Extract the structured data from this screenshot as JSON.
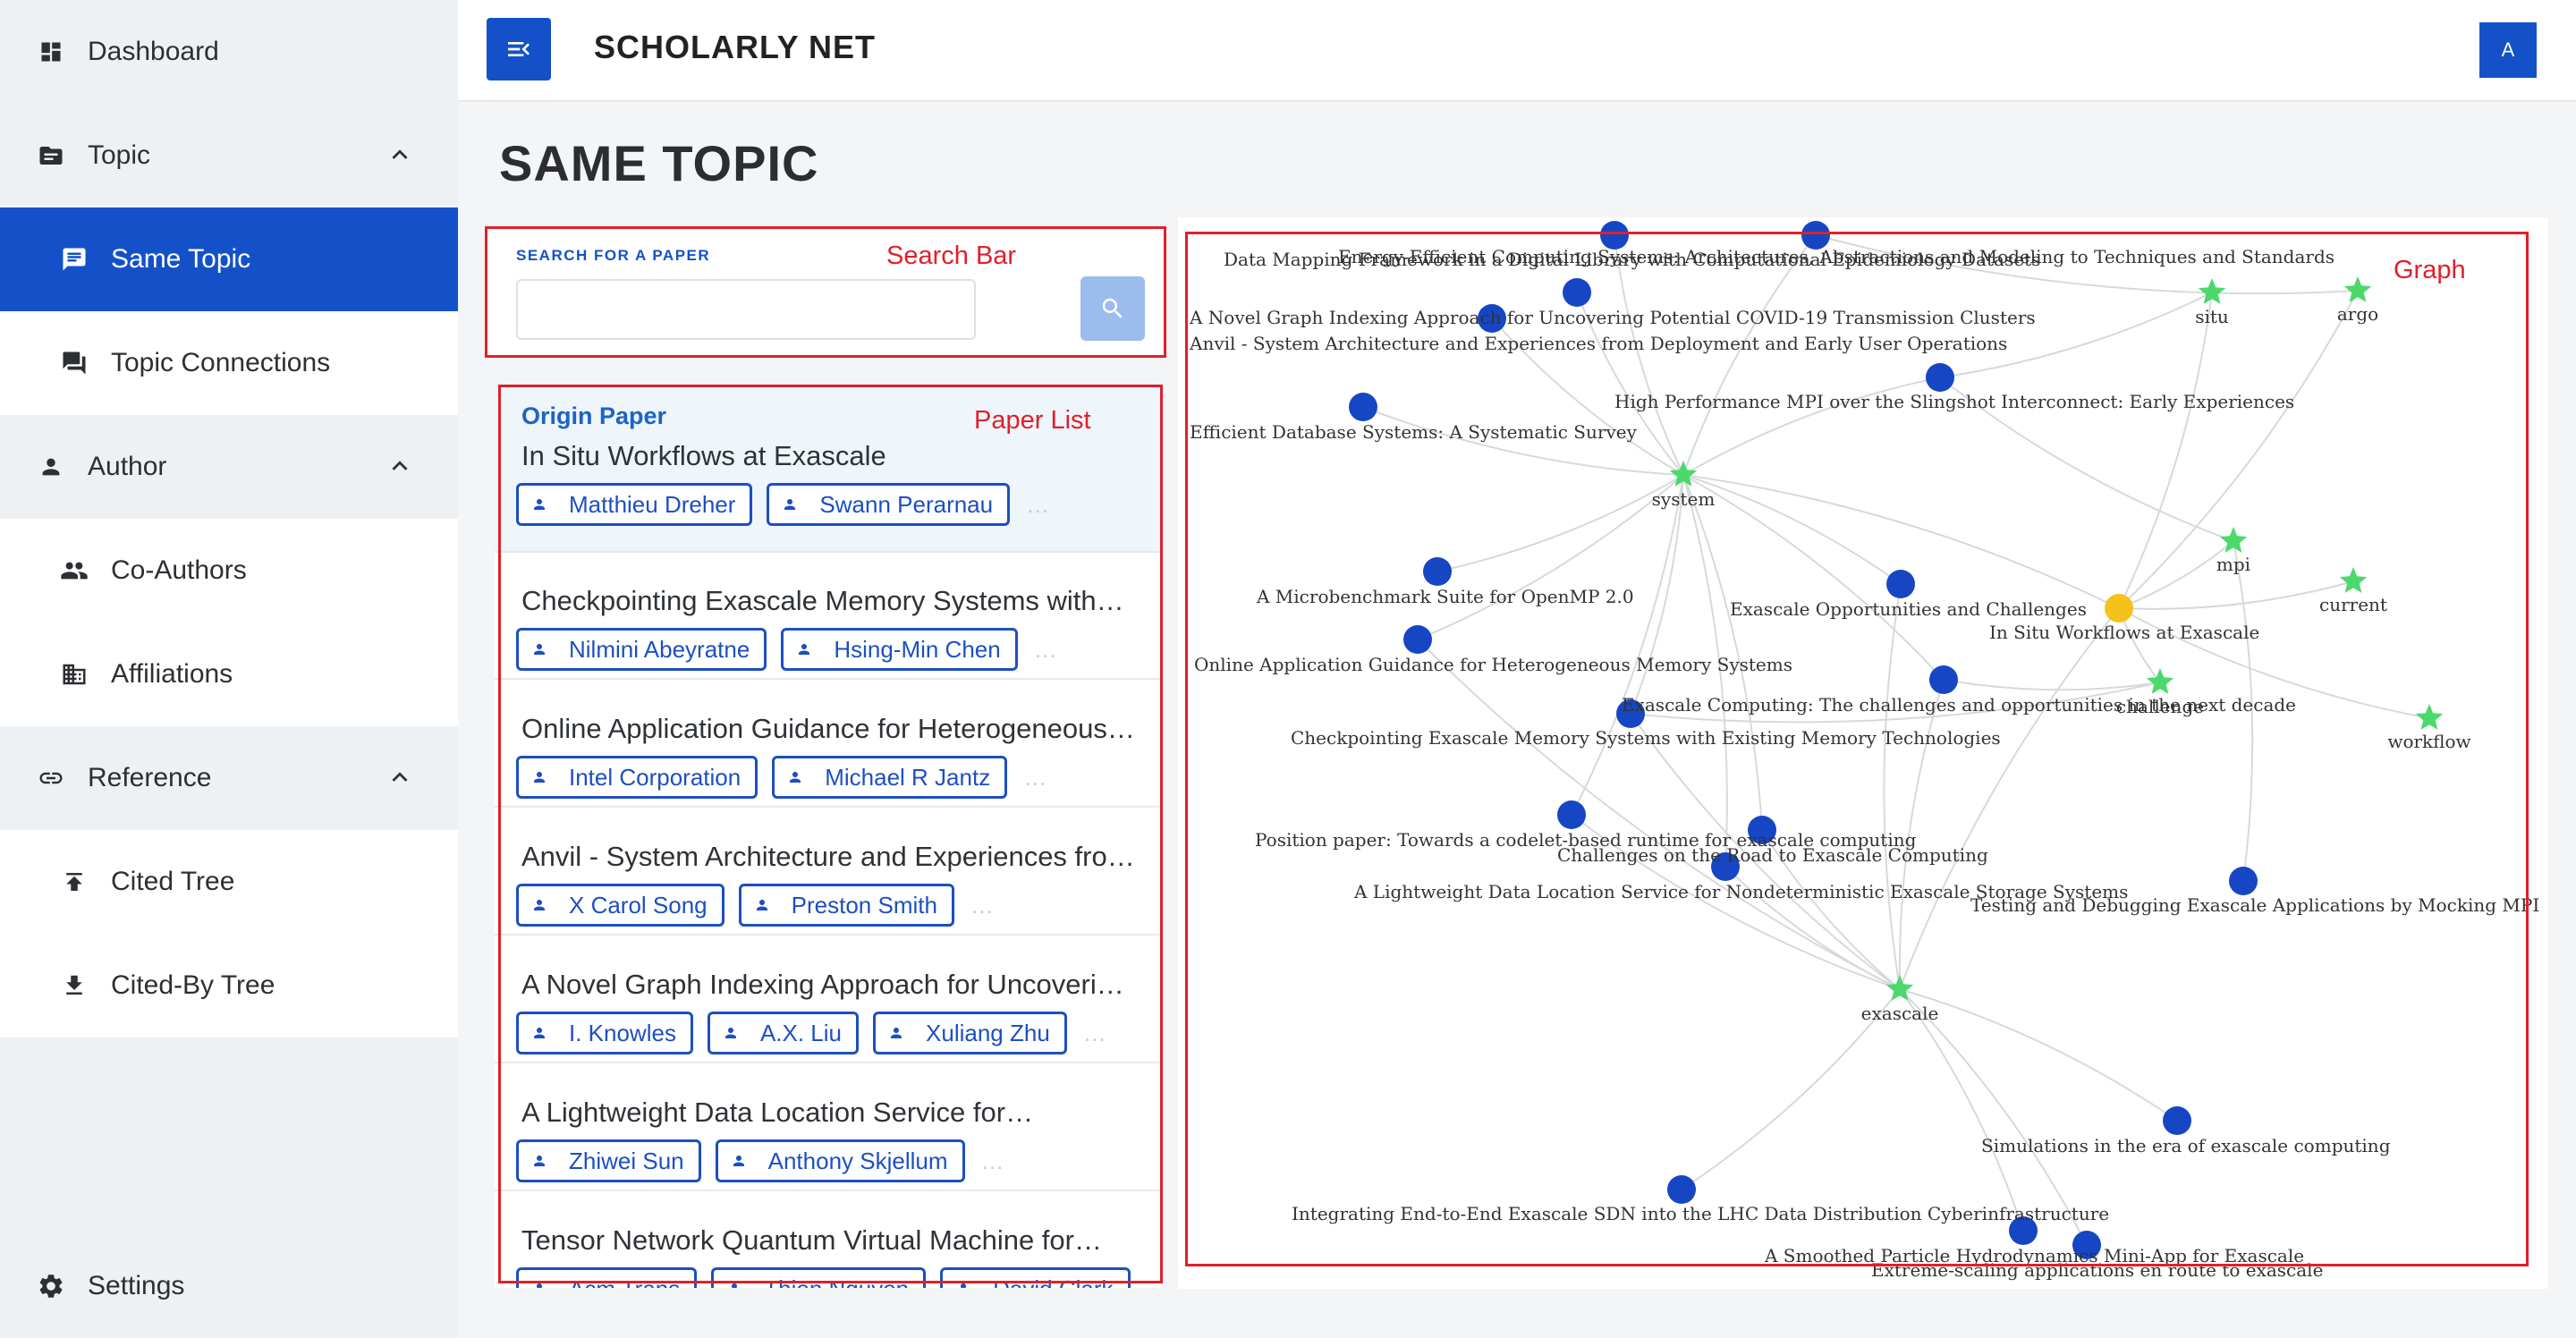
{
  "header": {
    "app_title": "SCHOLARLY NET",
    "avatar_initial": "A",
    "menu_icon": "menu-collapse-icon"
  },
  "page_title": "SAME TOPIC",
  "sidebar": {
    "items": [
      {
        "label": "Dashboard",
        "icon": "dashboard-icon",
        "level": "top"
      },
      {
        "label": "Topic",
        "icon": "topic-icon",
        "level": "top",
        "expanded": true
      },
      {
        "label": "Same Topic",
        "icon": "comment-icon",
        "level": "sub",
        "active": true
      },
      {
        "label": "Topic Connections",
        "icon": "forum-icon",
        "level": "sub"
      },
      {
        "label": "Author",
        "icon": "person-icon",
        "level": "top",
        "expanded": true
      },
      {
        "label": "Co-Authors",
        "icon": "people-icon",
        "level": "sub"
      },
      {
        "label": "Affiliations",
        "icon": "building-icon",
        "level": "sub"
      },
      {
        "label": "Reference",
        "icon": "link-icon",
        "level": "top",
        "expanded": true
      },
      {
        "label": "Cited Tree",
        "icon": "upload-arrow-icon",
        "level": "sub"
      },
      {
        "label": "Cited-By Tree",
        "icon": "download-arrow-icon",
        "level": "sub"
      }
    ],
    "settings_label": "Settings"
  },
  "search": {
    "label": "SEARCH FOR A PAPER",
    "value": "",
    "placeholder": ""
  },
  "paper_list": {
    "origin_label": "Origin Paper",
    "papers": [
      {
        "title": "In Situ Workflows at Exascale",
        "authors": [
          "Matthieu Dreher",
          "Swann Perarnau"
        ],
        "origin": true
      },
      {
        "title": "Checkpointing Exascale Memory Systems with…",
        "authors": [
          "Nilmini Abeyratne",
          "Hsing-Min Chen"
        ]
      },
      {
        "title": "Online Application Guidance for Heterogeneous…",
        "authors": [
          "Intel Corporation",
          "Michael R Jantz"
        ]
      },
      {
        "title": "Anvil - System Architecture and Experiences from…",
        "authors": [
          "X Carol Song",
          "Preston Smith"
        ]
      },
      {
        "title": "A Novel Graph Indexing Approach for Uncovering…",
        "authors": [
          "I. Knowles",
          "A.X. Liu",
          "Xuliang Zhu"
        ]
      },
      {
        "title": "A Lightweight Data Location Service for…",
        "authors": [
          "Zhiwei Sun",
          "Anthony Skjellum"
        ]
      },
      {
        "title": "Tensor Network Quantum Virtual Machine for…",
        "authors": [
          "Acm Trans",
          "Thien Nguyen",
          "David Clark"
        ]
      }
    ],
    "ellipsis": "…"
  },
  "annotations": {
    "search_bar": "Search Bar",
    "paper_list": "Paper List",
    "graph": "Graph"
  },
  "graph": {
    "colors": {
      "paper": "#1746c4",
      "origin": "#f5c21b",
      "keyword": "#4cd96b",
      "edge": "#d6d9dc"
    },
    "keywords": [
      "system",
      "situ",
      "argo",
      "mpi",
      "current",
      "challenge",
      "workflow",
      "exascale"
    ],
    "papers": [
      "Data Mapping Framework in a Digital Library with Computational Epidemiology Datasets",
      "Energy-Efficient Computing Systems: Architectures, Abstractions and Modeling to Techniques and Standards",
      "A Novel Graph Indexing Approach for Uncovering Potential COVID-19 Transmission Clusters",
      "Anvil - System Architecture and Experiences from Deployment and Early User Operations",
      "High Performance MPI over the Slingshot Interconnect: Early Experiences",
      "Efficient Database Systems: A Systematic Survey",
      "A Microbenchmark Suite for OpenMP 2.0",
      "Exascale Opportunities and Challenges",
      "In Situ Workflows at Exascale",
      "Online Application Guidance for Heterogeneous Memory Systems",
      "Exascale Computing: The challenges and opportunities in the next decade",
      "Checkpointing Exascale Memory Systems with Existing Memory Technologies",
      "Position paper: Towards a codelet-based runtime for exascale computing",
      "Challenges on the Road to Exascale Computing",
      "A Lightweight Data Location Service for Nondeterministic Exascale Storage Systems",
      "Testing and Debugging Exascale Applications by Mocking MPI",
      "Simulations in the era of exascale computing",
      "Integrating End-to-End Exascale SDN into the LHC Data Distribution Cyberinfrastructure",
      "A Smoothed Particle Hydrodynamics Mini-App for Exascale",
      "Extreme-scaling applications en route to exascale"
    ]
  }
}
